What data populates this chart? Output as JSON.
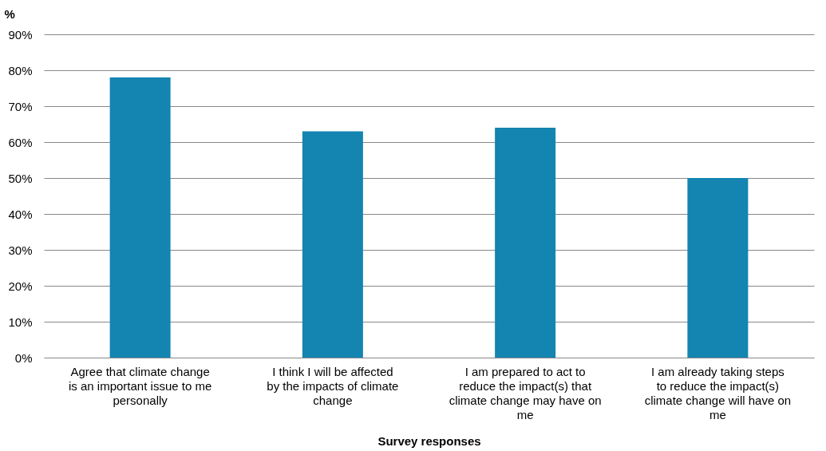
{
  "chart_data": {
    "type": "bar",
    "ylabel": "%",
    "xlabel": "Survey responses",
    "categories": [
      "Agree that climate change is an important issue to me personally",
      "I think I will be affected by the impacts of climate change",
      "I am prepared to act to reduce the impact(s) that climate change may have on me",
      "I am already taking steps to reduce the impact(s) climate change will have on me"
    ],
    "values": [
      78,
      63,
      64,
      50
    ],
    "color": "#1484b1",
    "ylim": [
      0,
      90
    ],
    "yticks": [
      {
        "value": 0,
        "label": "0%"
      },
      {
        "value": 10,
        "label": "10%"
      },
      {
        "value": 20,
        "label": "20%"
      },
      {
        "value": 30,
        "label": "30%"
      },
      {
        "value": 40,
        "label": "40%"
      },
      {
        "value": 50,
        "label": "50%"
      },
      {
        "value": 60,
        "label": "60%"
      },
      {
        "value": 70,
        "label": "70%"
      },
      {
        "value": 80,
        "label": "80%"
      },
      {
        "value": 90,
        "label": "90%"
      }
    ],
    "grid": "y"
  }
}
